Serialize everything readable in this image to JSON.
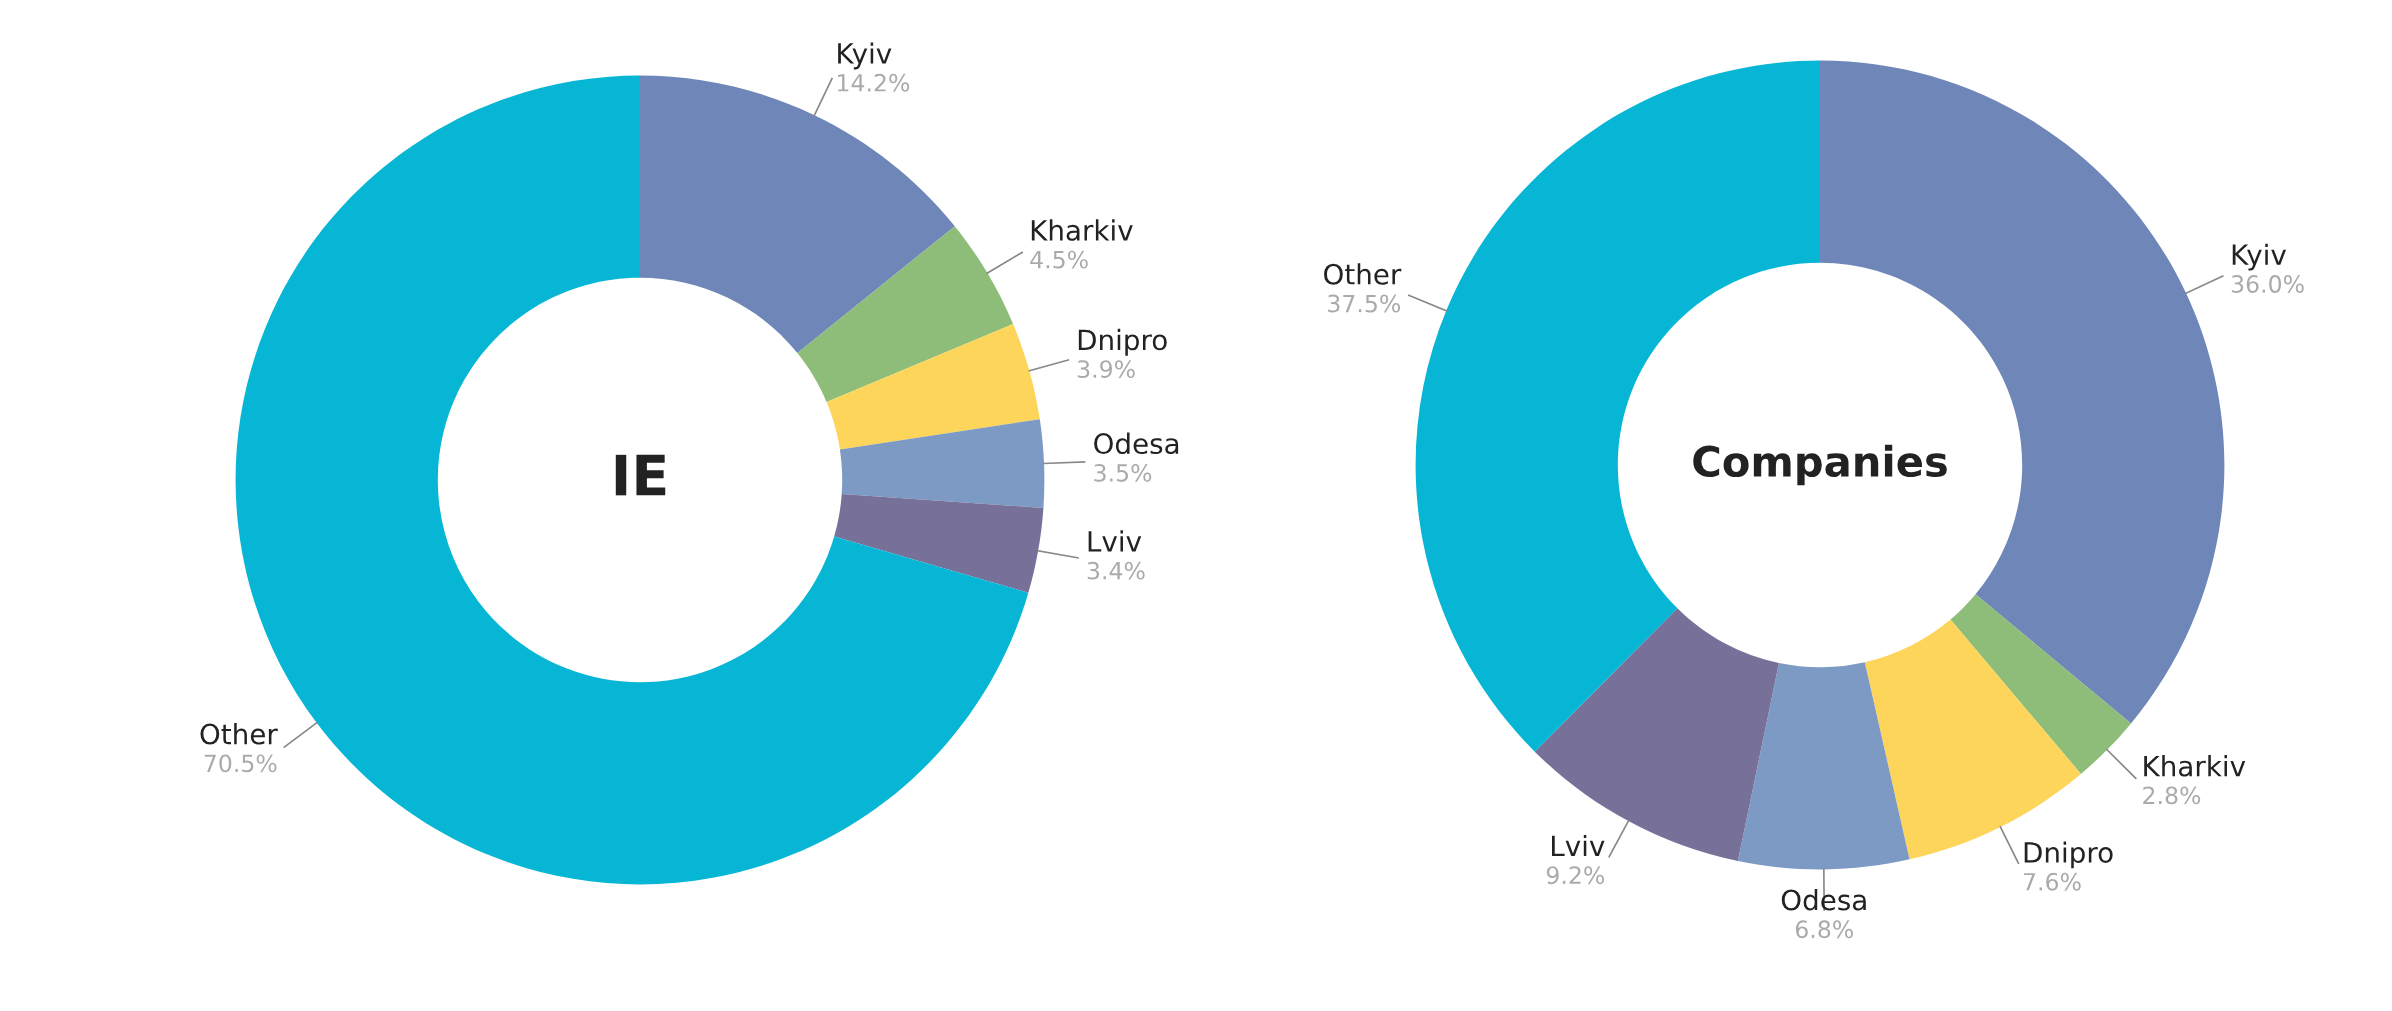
{
  "chart_data": [
    {
      "type": "donut",
      "title": "IE",
      "categories": [
        "Kyiv",
        "Kharkiv",
        "Dnipro",
        "Odesa",
        "Lviv",
        "Other"
      ],
      "values": [
        14.2,
        4.5,
        3.9,
        3.5,
        3.4,
        70.5
      ],
      "value_labels": [
        "14.2%",
        "4.5%",
        "3.9%",
        "3.5%",
        "3.4%",
        "70.5%"
      ],
      "colors": [
        "#6f86b9",
        "#8dbd78",
        "#fcd55a",
        "#7d9ac4",
        "#77719a",
        "#06b6d4"
      ],
      "legend": false
    },
    {
      "type": "donut",
      "title": "Companies",
      "categories": [
        "Kyiv",
        "Kharkiv",
        "Dnipro",
        "Odesa",
        "Lviv",
        "Other"
      ],
      "values": [
        36.0,
        2.8,
        7.6,
        6.8,
        9.2,
        37.5
      ],
      "value_labels": [
        "36.0%",
        "2.8%",
        "7.6%",
        "6.8%",
        "9.2%",
        "37.5%"
      ],
      "colors": [
        "#6f86b9",
        "#8dbd78",
        "#fcd55a",
        "#7d9ac4",
        "#77719a",
        "#06b6d4"
      ],
      "legend": false
    }
  ]
}
